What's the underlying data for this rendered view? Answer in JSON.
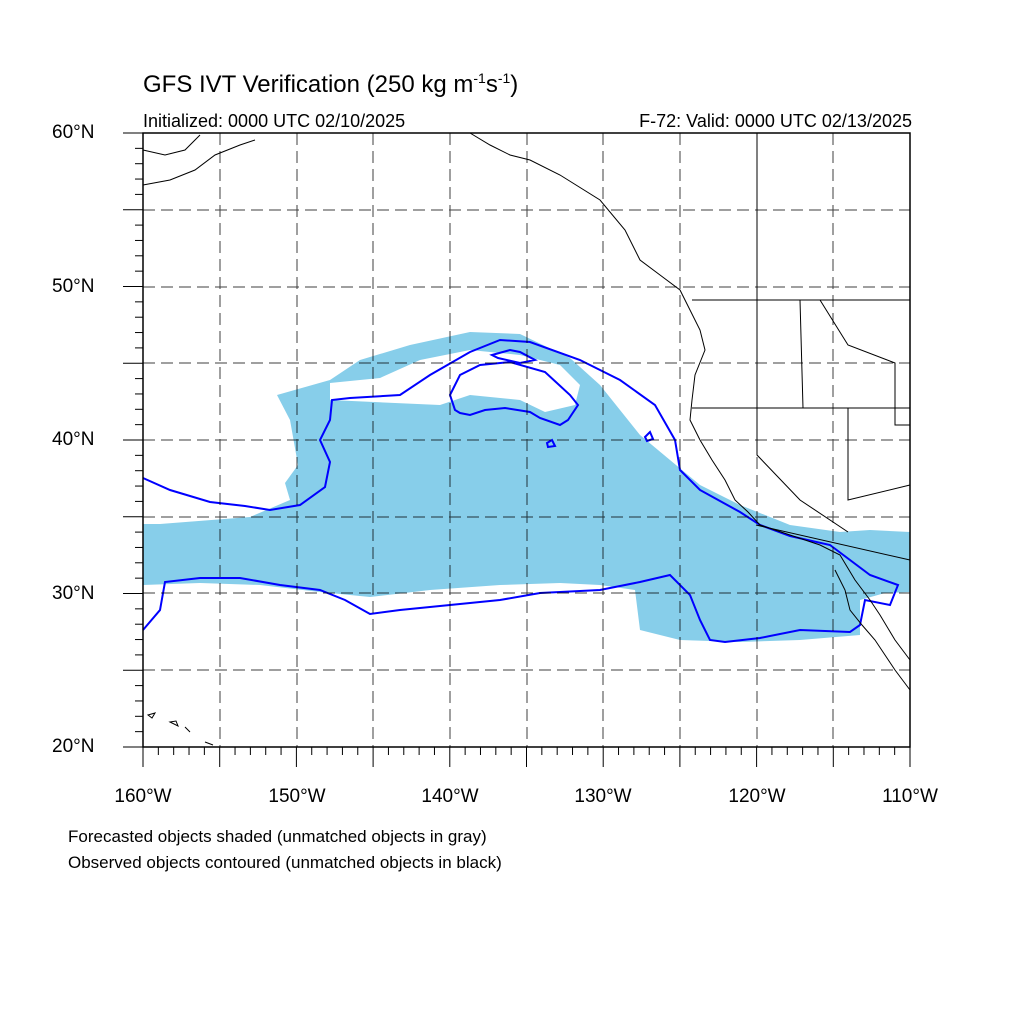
{
  "title_main": "GFS IVT Verification (250 kg m",
  "title_sup1": "-1",
  "title_mid": "s",
  "title_sup2": "-1",
  "title_end": ")",
  "initialized": "Initialized: 0000 UTC 02/10/2025",
  "valid": "F-72: Valid: 0000 UTC 02/13/2025",
  "lat_labels": [
    "60°N",
    "50°N",
    "40°N",
    "30°N",
    "20°N"
  ],
  "lon_labels": [
    "160°W",
    "150°W",
    "140°W",
    "130°W",
    "120°W",
    "110°W"
  ],
  "notes": {
    "forecast": "Forecasted objects shaded (unmatched objects in gray)",
    "observed": "Observed objects contoured (unmatched objects in black)"
  },
  "colors": {
    "forecast_fill": "#87ceea",
    "observed_contour": "#0000ff",
    "coastline": "#000000",
    "grid": "#000000"
  },
  "map": {
    "lon_range": [
      -160,
      -110
    ],
    "lat_range": [
      20,
      60
    ],
    "grid_spacing_deg": 5,
    "grid_style": "dashed"
  }
}
